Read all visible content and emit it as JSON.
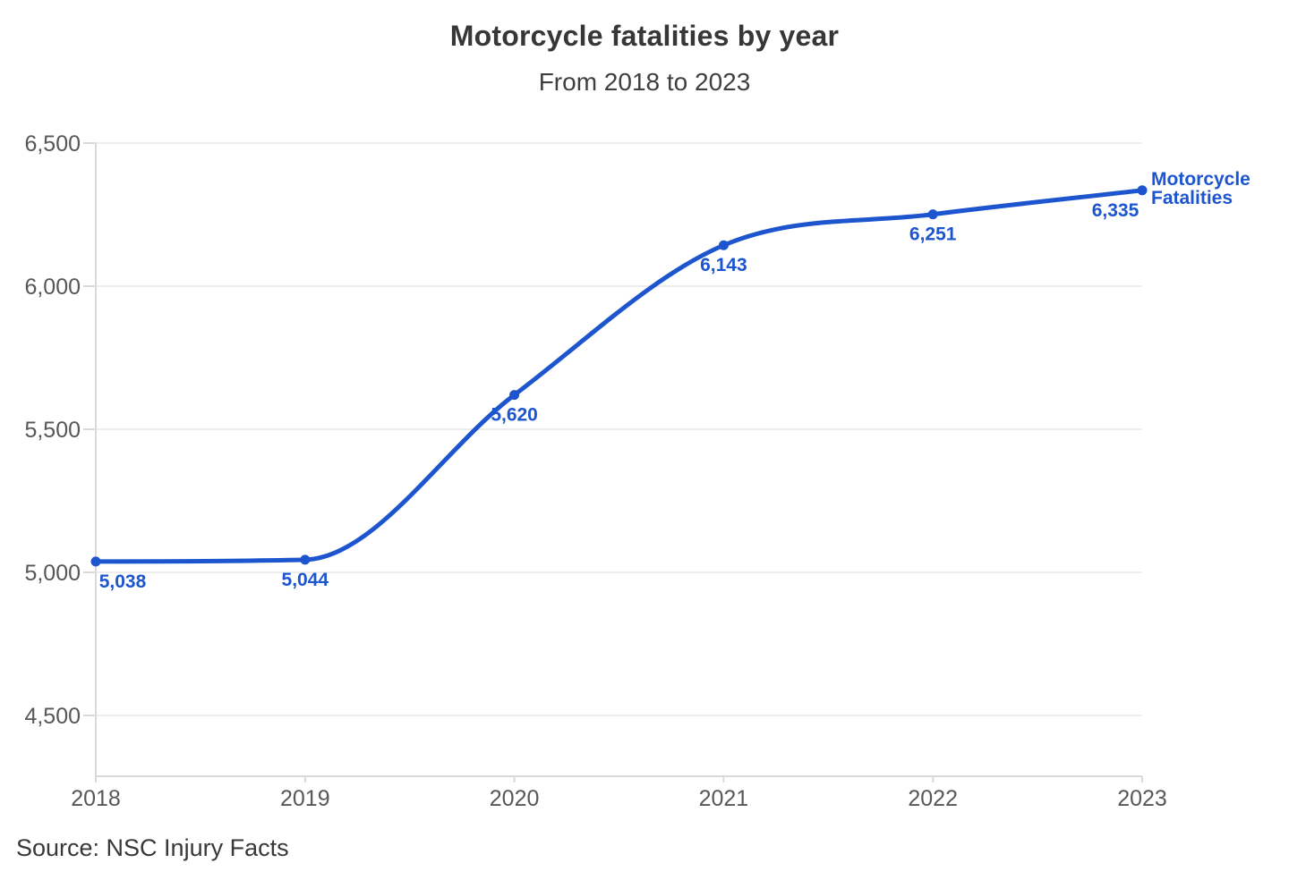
{
  "header": {
    "title": "Motorcycle fatalities by year",
    "subtitle": "From 2018 to 2023"
  },
  "footer": {
    "source": "Source: NSC Injury Facts"
  },
  "colors": {
    "line": "#1d55cf",
    "grid": "#ececec",
    "axis_line": "#d9d9d9",
    "axis_text": "#575757",
    "title_text": "#373737",
    "subtitle_text": "#3f3f3f",
    "source_text": "#383838",
    "background": "#ffffff"
  },
  "chart_data": {
    "type": "line",
    "title": "Motorcycle fatalities by year",
    "subtitle": "From 2018 to 2023",
    "categories": [
      2018,
      2019,
      2020,
      2021,
      2022,
      2023
    ],
    "series": [
      {
        "name": "Motorcycle Fatalities",
        "values": [
          5038,
          5044,
          5620,
          6143,
          6251,
          6335
        ]
      }
    ],
    "data_labels": [
      "5,038",
      "5,044",
      "5,620",
      "6,143",
      "6,251",
      "6,335"
    ],
    "xlabel": "",
    "ylabel": "",
    "y_ticks": [
      4500,
      5000,
      5500,
      6000,
      6500
    ],
    "y_tick_labels": [
      "4,500",
      "5,000",
      "5,500",
      "6,000",
      "6,500"
    ],
    "ylim": [
      4500,
      6500
    ],
    "grid": "horizontal",
    "legend_position": "end-of-line",
    "smooth": true,
    "source": "Source: NSC Injury Facts"
  }
}
